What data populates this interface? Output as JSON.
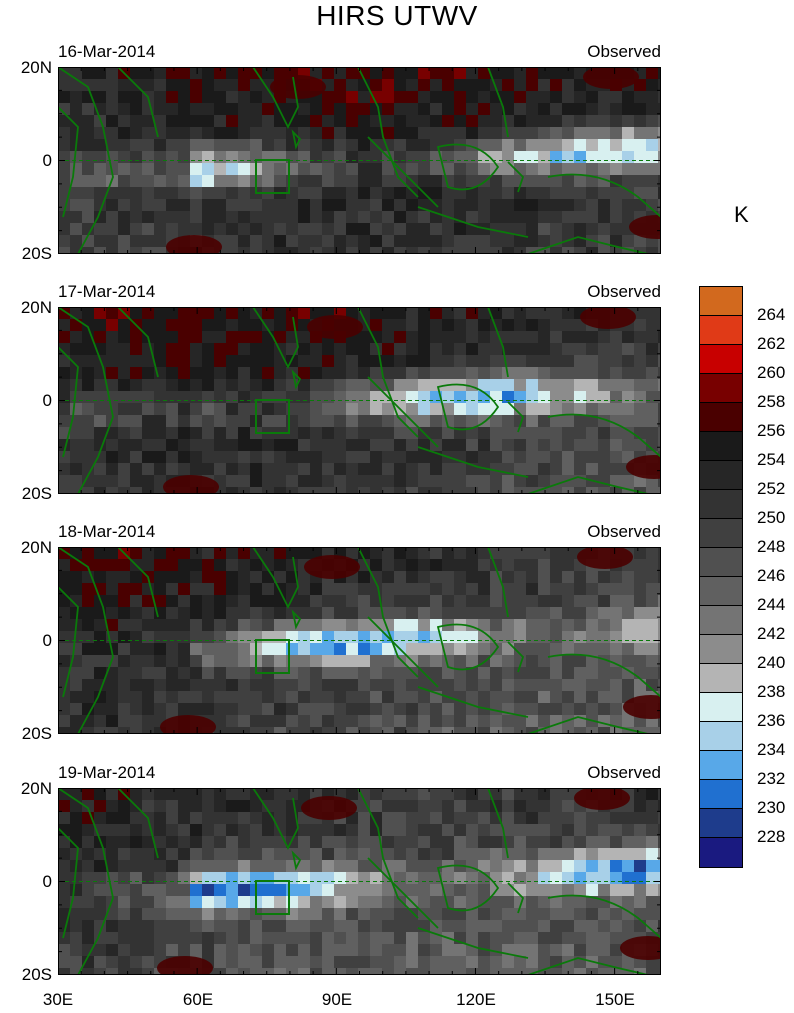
{
  "title": "HIRS UTWV",
  "unit": "K",
  "panels": [
    {
      "date": "16-Mar-2014",
      "label": "Observed"
    },
    {
      "date": "17-Mar-2014",
      "label": "Observed"
    },
    {
      "date": "18-Mar-2014",
      "label": "Observed"
    },
    {
      "date": "19-Mar-2014",
      "label": "Observed"
    }
  ],
  "lat_ticks": [
    "20N",
    "0",
    "20S"
  ],
  "lon_ticks": [
    "30E",
    "60E",
    "90E",
    "120E",
    "150E"
  ],
  "colorbar": {
    "levels": [
      "264",
      "262",
      "260",
      "258",
      "256",
      "254",
      "252",
      "250",
      "248",
      "246",
      "244",
      "242",
      "240",
      "238",
      "236",
      "234",
      "232",
      "230",
      "228"
    ],
    "colors": [
      "#d2691e",
      "#e03a17",
      "#c80000",
      "#780000",
      "#4a0000",
      "#1a1a1a",
      "#262626",
      "#333333",
      "#404040",
      "#505050",
      "#606060",
      "#747474",
      "#8c8c8c",
      "#b4b4b4",
      "#d8f0f0",
      "#a8d0e8",
      "#58a8e8",
      "#2070d0",
      "#1e3c8c",
      "#1a1a80"
    ]
  },
  "map_colors": {
    "coast": "#0a7a0a",
    "equator": "#0a7a0a",
    "box": "#0a7a0a"
  }
}
